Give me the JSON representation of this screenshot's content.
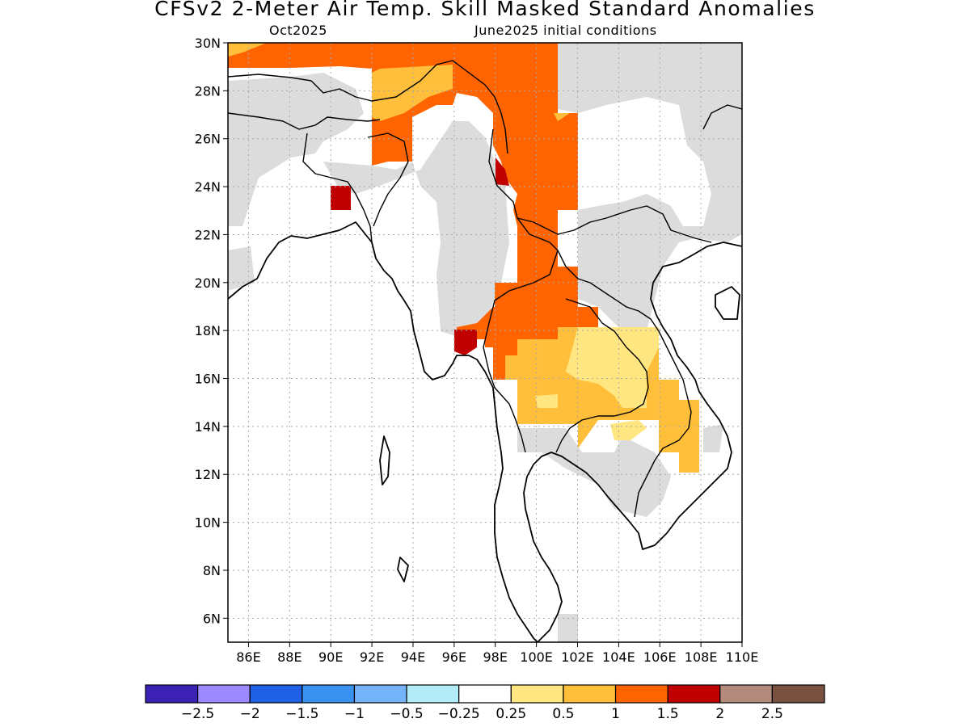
{
  "title": "CFSv2 2-Meter Air Temp. Skill Masked Standard Anomalies",
  "subtitle_left": "Oct2025",
  "subtitle_right": "June2025 initial conditions",
  "lat_labels": [
    "30N",
    "28N",
    "26N",
    "24N",
    "22N",
    "20N",
    "18N",
    "16N",
    "14N",
    "12N",
    "10N",
    "8N",
    "6N"
  ],
  "lon_labels": [
    "86E",
    "88E",
    "90E",
    "92E",
    "94E",
    "96E",
    "98E",
    "100E",
    "102E",
    "104E",
    "106E",
    "108E",
    "110E"
  ],
  "map_extent": {
    "lon": [
      85,
      110
    ],
    "lat": [
      5,
      30
    ]
  },
  "colorbar": {
    "colors": [
      "#3c22b4",
      "#9c89ff",
      "#1e60e6",
      "#3a92f0",
      "#76b4fa",
      "#b2ecf8",
      "#ffffff",
      "#ffe680",
      "#ffbf3a",
      "#ff6400",
      "#c00000",
      "#b48a7c",
      "#7a5040"
    ],
    "labels": [
      "-2.5",
      "-2",
      "-1.5",
      "-1",
      "-0.5",
      "-0.25",
      "0.25",
      "0.5",
      "1",
      "1.5",
      "2",
      "2.5"
    ]
  },
  "colors": {
    "masked": "#dcdcdc",
    "grid": "#a8a8a8",
    "coast": "#000000"
  }
}
